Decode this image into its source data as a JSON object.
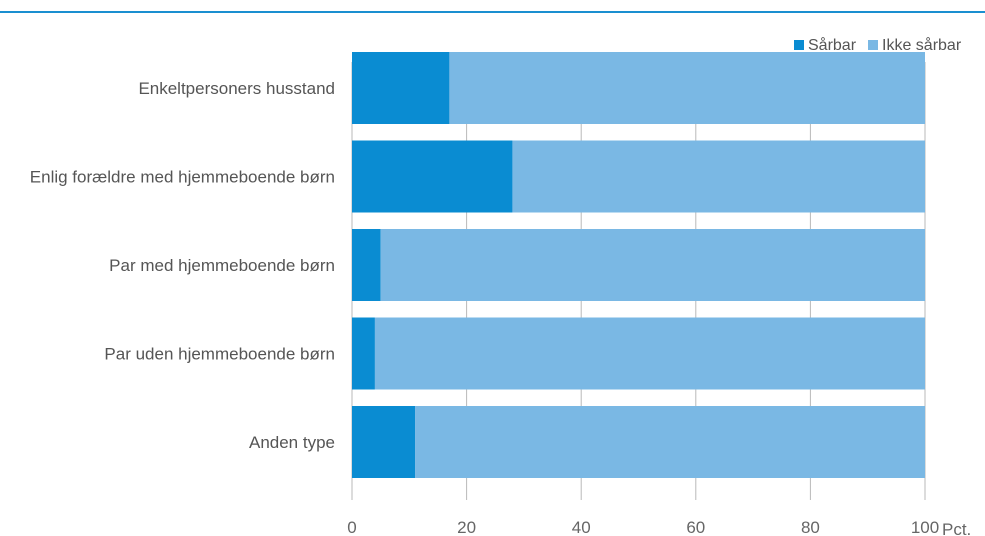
{
  "chart_data": {
    "type": "bar",
    "orientation": "horizontal",
    "stacked": true,
    "title": "",
    "xlabel": "",
    "ylabel": "",
    "x_unit": "Pct.",
    "xlim": [
      0,
      100
    ],
    "x_ticks": [
      0,
      20,
      40,
      60,
      80,
      100
    ],
    "grid": true,
    "legend_position": "top-right",
    "categories": [
      "Enkeltpersoners husstand",
      "Enlig forældre med hjemmeboende børn",
      "Par med hjemmeboende børn",
      "Par uden hjemmeboende børn",
      "Anden type"
    ],
    "series": [
      {
        "name": "Sårbar",
        "color": "#0a8cd2",
        "values": [
          17,
          28,
          5,
          4,
          11
        ]
      },
      {
        "name": "Ikke sårbar",
        "color": "#7ab8e4",
        "values": [
          83,
          72,
          95,
          96,
          89
        ]
      }
    ],
    "colors": {
      "gridline": "#b9b9b9",
      "top_rule": "#1a8fd0"
    }
  }
}
